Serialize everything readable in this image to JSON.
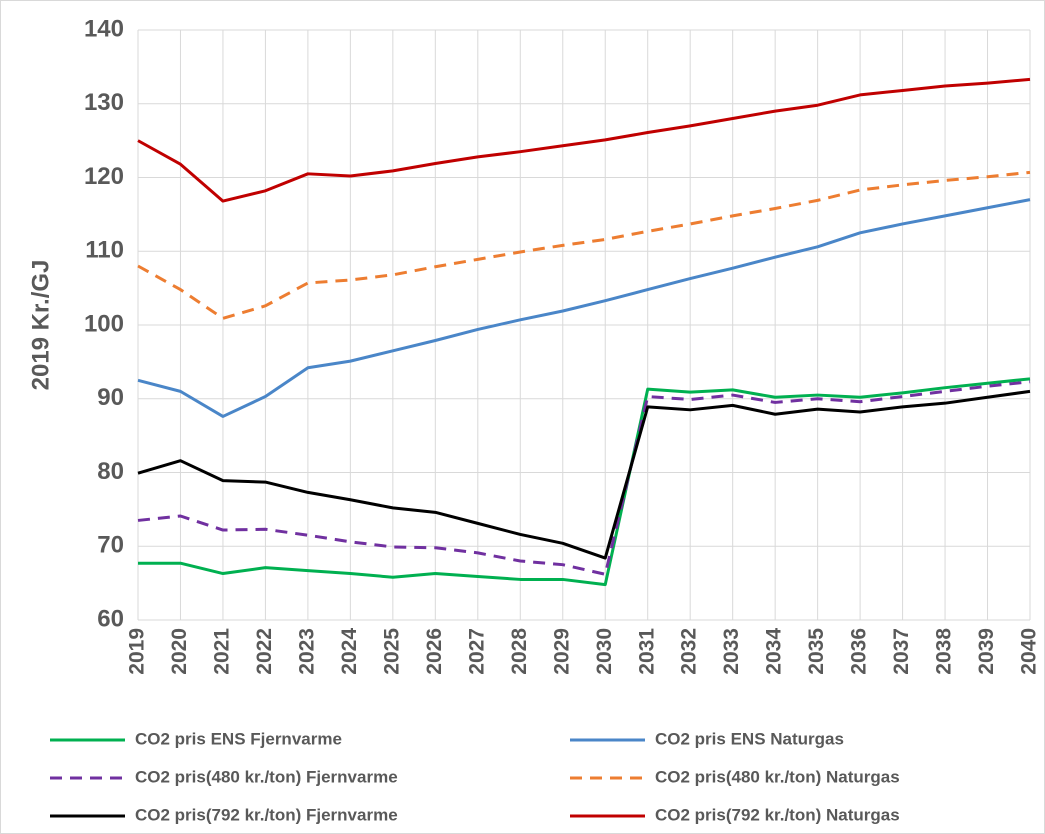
{
  "chart_data": {
    "type": "line",
    "ylabel": "2019 Kr./GJ",
    "categories": [
      "2019",
      "2020",
      "2021",
      "2022",
      "2023",
      "2024",
      "2025",
      "2026",
      "2027",
      "2028",
      "2029",
      "2030",
      "2031",
      "2032",
      "2033",
      "2034",
      "2035",
      "2036",
      "2037",
      "2038",
      "2039",
      "2040"
    ],
    "ylim": [
      60,
      140
    ],
    "yticks": [
      60,
      70,
      80,
      90,
      100,
      110,
      120,
      130,
      140
    ],
    "grid": true,
    "series": [
      {
        "name": "CO2 pris ENS Fjernvarme",
        "color": "#00b050",
        "dashed": false,
        "values": [
          67.7,
          67.7,
          66.3,
          67.1,
          66.7,
          66.3,
          65.8,
          66.3,
          65.9,
          65.5,
          65.5,
          64.8,
          91.3,
          90.9,
          91.2,
          90.2,
          90.5,
          90.2,
          90.8,
          91.5,
          92.1,
          92.7
        ]
      },
      {
        "name": "CO2 pris ENS Naturgas",
        "color": "#4a86c8",
        "dashed": false,
        "values": [
          92.5,
          91,
          87.6,
          90.3,
          94.2,
          95.1,
          96.5,
          97.9,
          99.4,
          100.7,
          101.9,
          103.3,
          104.8,
          106.3,
          107.7,
          109.2,
          110.6,
          112.5,
          113.7,
          114.8,
          115.9,
          117
        ]
      },
      {
        "name": "CO2 pris(480 kr./ton) Fjernvarme",
        "color": "#7030a0",
        "dashed": true,
        "values": [
          73.5,
          74.1,
          72.2,
          72.3,
          71.5,
          70.6,
          69.9,
          69.8,
          69.1,
          68,
          67.5,
          66.2,
          90.3,
          89.9,
          90.5,
          89.5,
          90,
          89.6,
          90.3,
          91,
          91.7,
          92.3
        ]
      },
      {
        "name": "CO2 pris(480 kr./ton) Naturgas",
        "color": "#ed7d31",
        "dashed": true,
        "values": [
          108,
          104.8,
          100.9,
          102.6,
          105.7,
          106.1,
          106.8,
          107.9,
          108.9,
          109.9,
          110.8,
          111.6,
          112.7,
          113.7,
          114.8,
          115.8,
          116.9,
          118.3,
          119,
          119.6,
          120.1,
          120.7
        ]
      },
      {
        "name": "CO2 pris(792 kr./ton) Fjernvarme",
        "color": "#000000",
        "dashed": false,
        "values": [
          79.9,
          81.6,
          78.9,
          78.7,
          77.3,
          76.3,
          75.2,
          74.6,
          73.1,
          71.6,
          70.4,
          68.4,
          88.9,
          88.5,
          89.1,
          87.9,
          88.6,
          88.2,
          88.9,
          89.4,
          90.2,
          91
        ]
      },
      {
        "name": "CO2 pris(792 kr./ton) Naturgas",
        "color": "#c00000",
        "dashed": false,
        "values": [
          125,
          121.8,
          116.8,
          118.2,
          120.5,
          120.2,
          120.9,
          121.9,
          122.8,
          123.5,
          124.3,
          125.1,
          126.1,
          127,
          128,
          129,
          129.8,
          131.2,
          131.8,
          132.4,
          132.8,
          133.3
        ]
      }
    ]
  }
}
